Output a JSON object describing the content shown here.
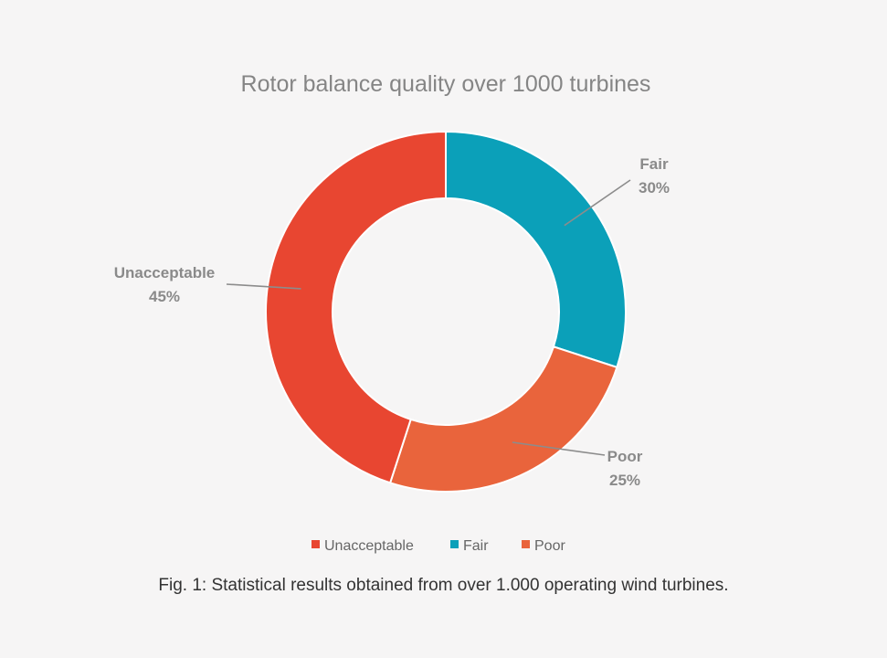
{
  "chart_data": {
    "type": "pie",
    "donut": true,
    "title": "Rotor balance quality over 1000 turbines",
    "categories": [
      "Fair",
      "Poor",
      "Unacceptable"
    ],
    "values": [
      30,
      25,
      45
    ],
    "labels": [
      "30%",
      "25%",
      "45%"
    ],
    "colors": [
      "#0ba0b9",
      "#e9643c",
      "#e84631"
    ],
    "legend": {
      "placement": "bottom",
      "entries": [
        "Unacceptable",
        "Fair",
        "Poor"
      ],
      "colors": [
        "#e84631",
        "#0ba0b9",
        "#e9643c"
      ]
    }
  },
  "caption": "Fig. 1:  Statistical results obtained from over 1.000 operating wind turbines."
}
